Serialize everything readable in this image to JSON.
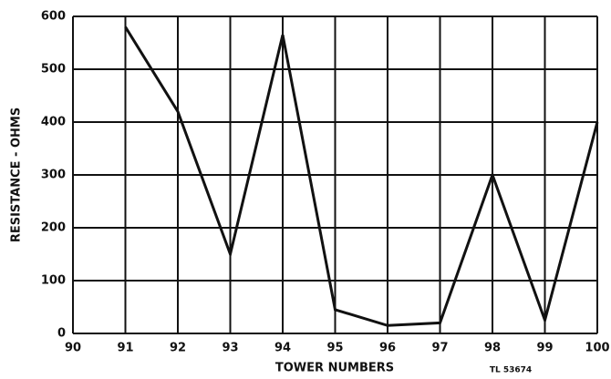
{
  "chart_data": {
    "type": "line",
    "x_label": "TOWER NUMBERS",
    "y_label": "RESISTANCE - OHMS",
    "annotation": "TL 53674",
    "x": [
      91,
      92,
      93,
      94,
      95,
      96,
      97,
      98,
      99,
      100
    ],
    "series": [
      {
        "name": "Resistance",
        "color": "#111111",
        "values": [
          580,
          420,
          150,
          565,
          45,
          15,
          20,
          300,
          25,
          400
        ]
      }
    ],
    "xlim": [
      90,
      100
    ],
    "xticks": [
      90,
      91,
      92,
      93,
      94,
      95,
      96,
      97,
      98,
      99,
      100
    ],
    "ylim": [
      0,
      600
    ],
    "yticks": [
      0,
      100,
      200,
      300,
      400,
      500,
      600
    ],
    "grid": true
  }
}
